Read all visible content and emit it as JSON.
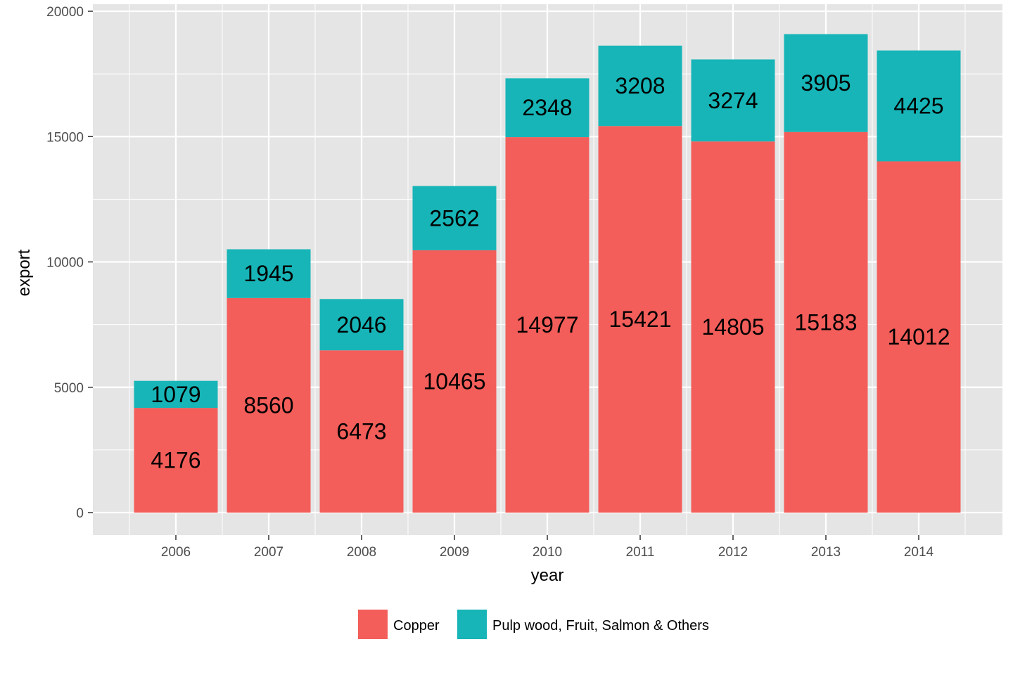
{
  "chart_data": {
    "type": "bar",
    "stacked": true,
    "title": "",
    "xlabel": "year",
    "ylabel": "export",
    "categories": [
      "2006",
      "2007",
      "2008",
      "2009",
      "2010",
      "2011",
      "2012",
      "2013",
      "2014"
    ],
    "series": [
      {
        "name": "Copper",
        "color": "#F35E5A",
        "values": [
          4176,
          8560,
          6473,
          10465,
          14977,
          15421,
          14805,
          15183,
          14012
        ]
      },
      {
        "name": "Pulp wood, Fruit, Salmon & Others",
        "color": "#17B5B7",
        "values": [
          1079,
          1945,
          2046,
          2562,
          2348,
          3208,
          3274,
          3905,
          4425
        ]
      }
    ],
    "ylim": [
      0,
      20000
    ],
    "yticks": [
      0,
      5000,
      10000,
      15000,
      20000
    ],
    "grid": true,
    "legend_position": "bottom",
    "panel_color": "#E5E5E5",
    "grid_color": "#FFFFFF"
  }
}
